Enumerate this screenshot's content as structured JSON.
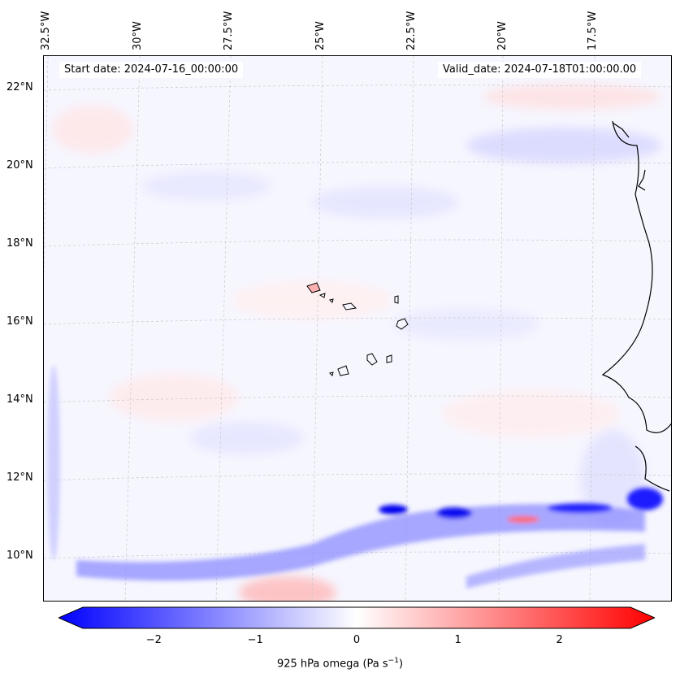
{
  "map": {
    "start_date": "Start date: 2024-07-16_00:00:00",
    "valid_date": "Valid_date: 2024-07-18T01:00:00.00",
    "lon_labels": [
      "32.5°W",
      "30°W",
      "27.5°W",
      "25°W",
      "22.5°W",
      "20°W",
      "17.5°W"
    ],
    "lat_labels": [
      "22°N",
      "20°N",
      "18°N",
      "16°N",
      "14°N",
      "12°N",
      "10°N"
    ],
    "region": "Cape Verde / West Africa",
    "colormap": "bwr"
  },
  "colorbar": {
    "ticks": [
      "−2",
      "−1",
      "0",
      "1",
      "2"
    ],
    "tick_values": [
      -2,
      -1,
      0,
      1,
      2
    ],
    "range": [
      -2.7,
      2.7
    ],
    "label_prefix": "925 hPa omega (Pa s",
    "label_exp": "−1",
    "label_suffix": ")",
    "colors": {
      "min": "#0000ff",
      "mid": "#ffffff",
      "max": "#ff0000"
    }
  }
}
